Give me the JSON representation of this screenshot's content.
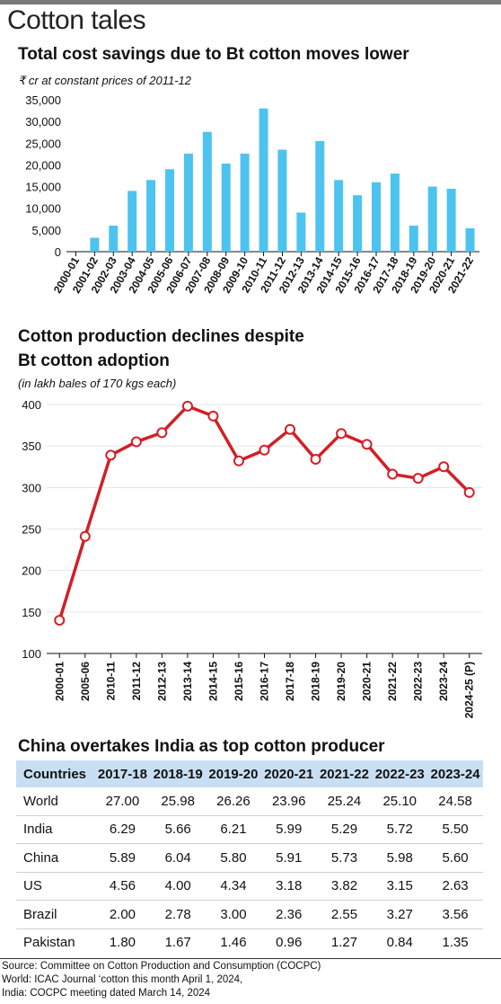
{
  "page": {
    "title": "Cotton tales",
    "source_lines": [
      "Source: Committee on Cotton Production and Consumption (COCPC)",
      "World: ICAC Journal ‘cotton this month April 1, 2024,",
      "India: COCPC meeting dated March 14, 2024"
    ]
  },
  "colors": {
    "bar": "#4dc3ef",
    "line": "#d21f26",
    "table_header": "#c8dff3",
    "topbar": "#7a7a7a"
  },
  "chart_data": [
    {
      "type": "bar",
      "title": "Total cost savings due to Bt cotton moves lower",
      "ylabel": "₹ cr at constant prices of 2011-12",
      "categories": [
        "2000-01",
        "2001-02",
        "2002-03",
        "2003-04",
        "2004-05",
        "2005-06",
        "2006-07",
        "2007-08",
        "2008-09",
        "2009-10",
        "2010-11",
        "2011-12",
        "2012-13",
        "2013-14",
        "2014-15",
        "2015-16",
        "2016-17",
        "2017-18",
        "2018-19",
        "2019-20",
        "2020-21",
        "2021-22"
      ],
      "values": [
        0,
        3200,
        6000,
        14000,
        16500,
        19000,
        22600,
        27600,
        20300,
        22600,
        33000,
        23500,
        9000,
        25500,
        16500,
        13000,
        16000,
        18000,
        6000,
        15000,
        14500,
        5400
      ],
      "ylim": [
        0,
        35000
      ],
      "yticks": [
        0,
        5000,
        10000,
        15000,
        20000,
        25000,
        30000,
        35000
      ],
      "ytick_labels": [
        "0",
        "5,000",
        "10,000",
        "15,000",
        "20,000",
        "25,000",
        "30,000",
        "35,000"
      ]
    },
    {
      "type": "line",
      "title_lines": [
        "Cotton production declines despite",
        "Bt cotton adoption"
      ],
      "ylabel": "(in lakh bales of 170 kgs each)",
      "categories": [
        "2000-01",
        "2005-06",
        "2010-11",
        "2011-12",
        "2012-13",
        "2013-14",
        "2014-15",
        "2015-16",
        "2016-17",
        "2017-18",
        "2018-19",
        "2019-20",
        "2020-21",
        "2021-22",
        "2022-23",
        "2023-24",
        "2024-25 (P)"
      ],
      "values": [
        140,
        241,
        339,
        355,
        366,
        398,
        386,
        332,
        345,
        370,
        334,
        365,
        352,
        316,
        311,
        325,
        294
      ],
      "ylim": [
        100,
        400
      ],
      "yticks": [
        100,
        150,
        200,
        250,
        300,
        350,
        400
      ]
    },
    {
      "type": "table",
      "title": "China overtakes India as top cotton producer",
      "columns": [
        "Countries",
        "2017-18",
        "2018-19",
        "2019-20",
        "2020-21",
        "2021-22",
        "2022-23",
        "2023-24"
      ],
      "rows": [
        [
          "World",
          "27.00",
          "25.98",
          "26.26",
          "23.96",
          "25.24",
          "25.10",
          "24.58"
        ],
        [
          "India",
          "6.29",
          "5.66",
          "6.21",
          "5.99",
          "5.29",
          "5.72",
          "5.50"
        ],
        [
          "China",
          "5.89",
          "6.04",
          "5.80",
          "5.91",
          "5.73",
          "5.98",
          "5.60"
        ],
        [
          "US",
          "4.56",
          "4.00",
          "4.34",
          "3.18",
          "3.82",
          "3.15",
          "2.63"
        ],
        [
          "Brazil",
          "2.00",
          "2.78",
          "3.00",
          "2.36",
          "2.55",
          "3.27",
          "3.56"
        ],
        [
          "Pakistan",
          "1.80",
          "1.67",
          "1.46",
          "0.96",
          "1.27",
          "0.84",
          "1.35"
        ]
      ]
    }
  ]
}
